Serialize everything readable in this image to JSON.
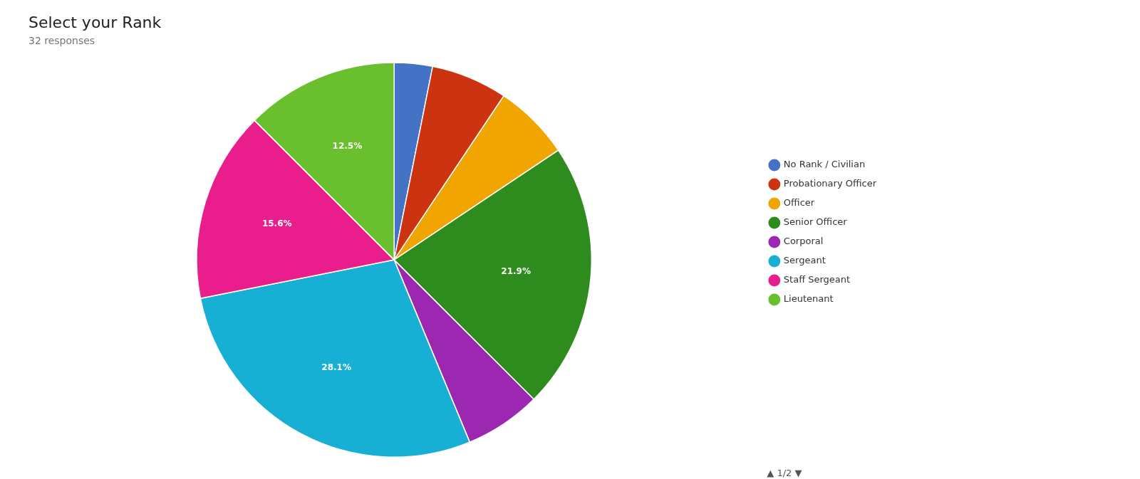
{
  "chart_data": {
    "type": "pie",
    "title": "Select your Rank",
    "subtitle": "32 responses",
    "categories": [
      "No Rank / Civilian",
      "Probationary Officer",
      "Officer",
      "Senior Officer",
      "Corporal",
      "Sergeant",
      "Staff Sergeant",
      "Lieutenant"
    ],
    "values": [
      3.125,
      6.25,
      6.25,
      21.875,
      6.25,
      28.125,
      15.625,
      12.5
    ],
    "value_labels": [
      null,
      null,
      null,
      "21.9%",
      null,
      "28.1%",
      "15.6%",
      "12.5%"
    ],
    "colors": [
      "#4472c4",
      "#cc3311",
      "#f0a500",
      "#2e8b1e",
      "#9c27b0",
      "#17b0d4",
      "#e91e8c",
      "#6abf2e"
    ],
    "legend": "right",
    "annotations": [
      "▲ 1/2 ▼"
    ]
  }
}
